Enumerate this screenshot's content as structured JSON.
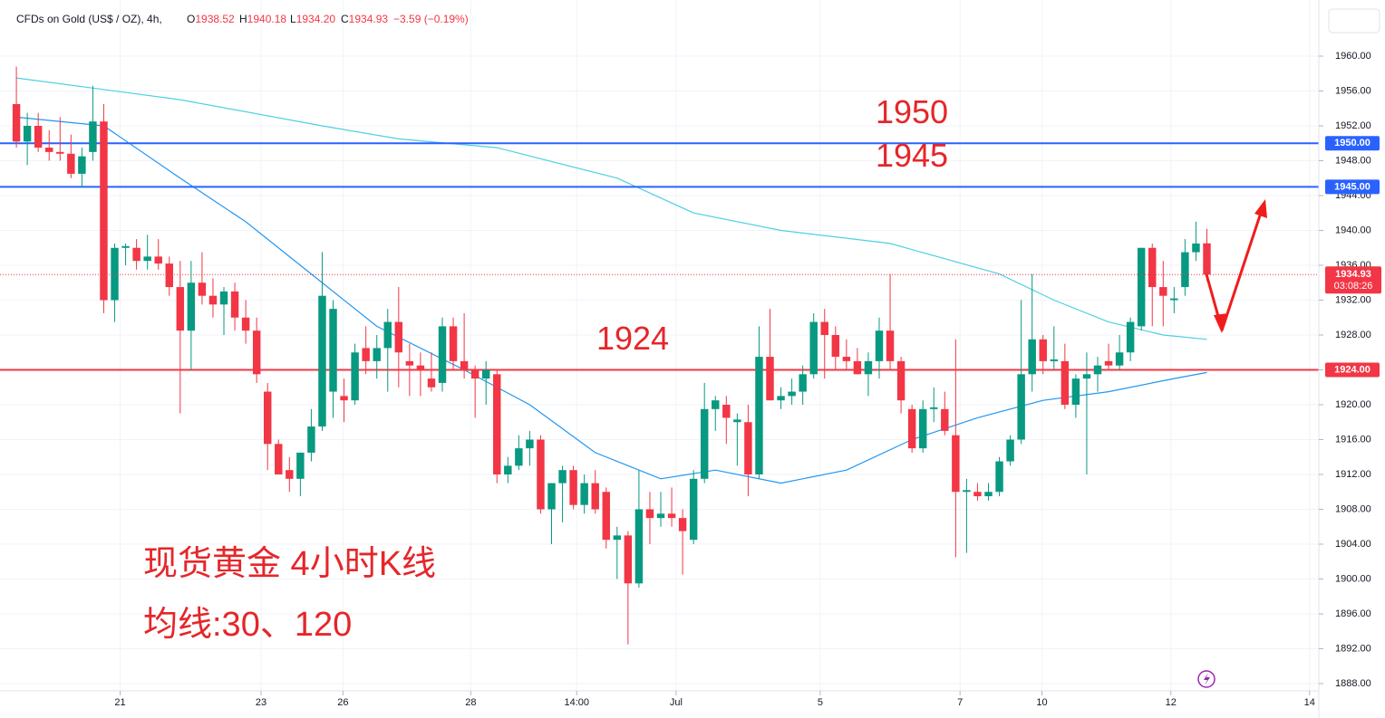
{
  "chart_data": {
    "type": "candlestick",
    "title": "CFDs on Gold (US$ / OZ), 4h,",
    "ohlc_header": [
      {
        "key": "O",
        "text": "1938.52"
      },
      {
        "key": "H",
        "text": "1940.18"
      },
      {
        "key": "L",
        "text": "1934.20"
      },
      {
        "key": "C",
        "text": "1934.93"
      },
      {
        "key": "",
        "text": "−3.59 (−0.19%)"
      }
    ],
    "up_color": "#089981",
    "down_color": "#f23645",
    "open": [
      1954.5,
      1950.2,
      1952,
      1949.5,
      1949,
      1948.8,
      1946.5,
      1949,
      1952.5,
      1932,
      1938,
      1938,
      1936.5,
      1937,
      1936.2,
      1933.5,
      1928.5,
      1934,
      1932.5,
      1931.5,
      1933,
      1930,
      1928.5,
      1921.5,
      1915.5,
      1912.5,
      1911.5,
      1914.5,
      1917.5,
      1921.5,
      1921,
      1920.5,
      1926.5,
      1925,
      1926.5,
      1929.5,
      1925,
      1924.5,
      1923,
      1922.5,
      1929,
      1925,
      1924,
      1923,
      1923.5,
      1912,
      1913,
      1915,
      1916,
      1908,
      1911,
      1912.5,
      1908.5,
      1911,
      1910,
      1904.5,
      1905,
      1899.5,
      1908,
      1907,
      1907.5,
      1907,
      1904.5,
      1911.5,
      1919.5,
      1920,
      1918,
      1918,
      1912,
      1925.5,
      1920.5,
      1921,
      1921.5,
      1923.5,
      1929.5,
      1928,
      1925.5,
      1925,
      1923.5,
      1925,
      1928.5,
      1925,
      1919.5,
      1915,
      1919.5,
      1919.5,
      1916.5,
      1910,
      1910,
      1909.5,
      1910,
      1913.5,
      1916,
      1923.5,
      1927.5,
      1925,
      1925,
      1920,
      1923,
      1923.5,
      1925,
      1924.5,
      1926,
      1929,
      1938,
      1933.5,
      1932,
      1933.5,
      1937.5,
      1938.52
    ],
    "high": [
      1958.8,
      1953.5,
      1953.5,
      1951.5,
      1953,
      1951,
      1949.5,
      1956.6,
      1954.5,
      1938.5,
      1938.5,
      1939,
      1939.5,
      1939,
      1937,
      1936.5,
      1936.5,
      1937.5,
      1934.5,
      1933.5,
      1934,
      1932,
      1930,
      1922.5,
      1916,
      1914,
      1914,
      1919.5,
      1937.5,
      1932,
      1923,
      1927,
      1929,
      1928,
      1931,
      1933.5,
      1927,
      1926,
      1926,
      1930,
      1930,
      1930.5,
      1924.5,
      1925,
      1924,
      1914,
      1916.5,
      1917,
      1916.5,
      1911,
      1913,
      1913,
      1912,
      1912.5,
      1910.5,
      1906,
      1905.5,
      1912.5,
      1910,
      1910,
      1910.5,
      1908,
      1912.5,
      1922.5,
      1921,
      1921,
      1919,
      1920,
      1929,
      1931,
      1922,
      1923,
      1924.5,
      1930.5,
      1931,
      1929,
      1927.5,
      1926.5,
      1926,
      1930,
      1935,
      1925.5,
      1920,
      1920.5,
      1922,
      1921.5,
      1927.5,
      1911.5,
      1911,
      1911,
      1914,
      1916.5,
      1932,
      1935,
      1928,
      1929,
      1927,
      1923.5,
      1926,
      1925.5,
      1927,
      1928,
      1930,
      1938,
      1938.5,
      1936.5,
      1933.5,
      1939,
      1941,
      1940.18
    ],
    "low": [
      1949.5,
      1947.5,
      1949,
      1948,
      1948,
      1946,
      1945,
      1948,
      1930.5,
      1929.5,
      1936,
      1935.5,
      1935.5,
      1935.5,
      1932.5,
      1919,
      1924,
      1931.5,
      1930,
      1928,
      1928.5,
      1927,
      1922.5,
      1912.5,
      1912,
      1910,
      1909.5,
      1913.5,
      1917,
      1918.5,
      1918,
      1920,
      1923.5,
      1923,
      1921.5,
      1922,
      1921,
      1921,
      1921.5,
      1921.5,
      1924,
      1923,
      1918.5,
      1920,
      1911,
      1911,
      1912.5,
      1913,
      1907.5,
      1904,
      1906.5,
      1908,
      1907.5,
      1907.5,
      1903.5,
      1900,
      1892.5,
      1899,
      1904,
      1906,
      1906,
      1900.5,
      1904,
      1911,
      1917,
      1915.5,
      1913,
      1909.5,
      1911.5,
      1920.5,
      1919.5,
      1920,
      1920,
      1923,
      1923,
      1924,
      1924,
      1923.5,
      1921,
      1923,
      1924,
      1919,
      1914.5,
      1914.5,
      1918,
      1916.5,
      1902.5,
      1903,
      1909,
      1909,
      1909.5,
      1913,
      1915.5,
      1921.5,
      1923.5,
      1924,
      1919.5,
      1918.5,
      1912,
      1921.5,
      1924,
      1924,
      1925,
      1928.5,
      1929,
      1929,
      1930.5,
      1932.5,
      1936.5,
      1934.2
    ],
    "close": [
      1950.2,
      1952,
      1949.5,
      1949,
      1948.8,
      1946.5,
      1948.5,
      1952.5,
      1932,
      1938,
      1938.2,
      1936.5,
      1937,
      1936.2,
      1933.5,
      1928.5,
      1934,
      1932.5,
      1931.5,
      1933,
      1930,
      1928.5,
      1923.5,
      1915.5,
      1912,
      1911.5,
      1914.5,
      1917.5,
      1932.5,
      1931,
      1920.5,
      1926,
      1925,
      1926.5,
      1929.5,
      1926,
      1924.5,
      1924,
      1922,
      1929,
      1925,
      1924,
      1923,
      1924,
      1912,
      1913,
      1915,
      1916,
      1908,
      1911,
      1912.5,
      1908.5,
      1911,
      1908,
      1904.5,
      1905,
      1899.5,
      1908,
      1907,
      1907.5,
      1907,
      1905.5,
      1911.5,
      1919.5,
      1920.5,
      1918.5,
      1918.3,
      1912,
      1925.5,
      1920.5,
      1921,
      1921.5,
      1923.5,
      1929.5,
      1928,
      1925.5,
      1925,
      1923.5,
      1925,
      1928.5,
      1925,
      1920.5,
      1915,
      1919.5,
      1919.7,
      1917,
      1910,
      1910.2,
      1909.5,
      1910,
      1913.5,
      1916,
      1923.5,
      1927.5,
      1925,
      1925.2,
      1920,
      1923,
      1923.5,
      1924.5,
      1924.5,
      1926,
      1929.5,
      1938,
      1933.5,
      1932.5,
      1932.2,
      1937.5,
      1938.5,
      1934.93
    ],
    "ma_lines": [
      {
        "color": "#4dd0e1",
        "x": [
          0,
          15,
          28,
          35,
          44,
          55,
          62,
          70,
          80,
          90,
          95,
          100,
          105,
          109
        ],
        "values": [
          1957.5,
          1955,
          1952,
          1950.5,
          1949.5,
          1946,
          1942,
          1940,
          1938.5,
          1935,
          1932,
          1929.5,
          1928,
          1927.5
        ]
      },
      {
        "color": "#2196f3",
        "x": [
          0,
          8,
          15,
          21,
          27,
          33,
          41,
          47,
          53,
          59,
          64,
          70,
          76,
          82,
          88,
          94,
          100,
          106,
          109
        ],
        "values": [
          1953,
          1952,
          1946,
          1941,
          1935,
          1929,
          1924,
          1920,
          1914.5,
          1911.5,
          1912.5,
          1911,
          1912.5,
          1916,
          1918.5,
          1920.5,
          1921.5,
          1923,
          1923.7
        ]
      }
    ],
    "levels": [
      {
        "value": 1950,
        "label": "1950.00",
        "color": "#2962ff"
      },
      {
        "value": 1945,
        "label": "1945.00",
        "color": "#2962ff"
      },
      {
        "value": 1924,
        "label": "1924.00",
        "color": "#f23645"
      }
    ],
    "last_price": {
      "value": 1934.93,
      "countdown": "03:08:26",
      "color": "#f23645"
    },
    "annotations": [
      "现货黄金 4小时K线",
      "均线:30、120"
    ],
    "xlim": [
      -1.5,
      119.25
    ],
    "xticks": [
      {
        "value": 9.5,
        "label": "21"
      },
      {
        "value": 22.4,
        "label": "23"
      },
      {
        "value": 29.9,
        "label": "26"
      },
      {
        "value": 41.6,
        "label": "28"
      },
      {
        "value": 51.3,
        "label": "14:00"
      },
      {
        "value": 60.4,
        "label": "Jul"
      },
      {
        "value": 73.6,
        "label": "5"
      },
      {
        "value": 86.4,
        "label": "7"
      },
      {
        "value": 93.9,
        "label": "10"
      },
      {
        "value": 105.7,
        "label": "12"
      },
      {
        "value": 118.4,
        "label": "14"
      }
    ],
    "ylim": [
      1887.17,
      1966.44
    ],
    "yticks": [
      {
        "value": 1888,
        "label": "1888.00"
      },
      {
        "value": 1892,
        "label": "1892.00"
      },
      {
        "value": 1896,
        "label": "1896.00"
      },
      {
        "value": 1900,
        "label": "1900.00"
      },
      {
        "value": 1904,
        "label": "1904.00"
      },
      {
        "value": 1908,
        "label": "1908.00"
      },
      {
        "value": 1912,
        "label": "1912.00"
      },
      {
        "value": 1916,
        "label": "1916.00"
      },
      {
        "value": 1920,
        "label": "1920.00"
      },
      {
        "value": 1924,
        "label": "1924.00"
      },
      {
        "value": 1928,
        "label": "1928.00"
      },
      {
        "value": 1932,
        "label": "1932.00"
      },
      {
        "value": 1936,
        "label": "1936.00"
      },
      {
        "value": 1940,
        "label": "1940.00"
      },
      {
        "value": 1944,
        "label": "1944.00"
      },
      {
        "value": 1948,
        "label": "1948.00"
      },
      {
        "value": 1952,
        "label": "1952.00"
      },
      {
        "value": 1956,
        "label": "1956.00"
      },
      {
        "value": 1960,
        "label": "1960.00"
      }
    ],
    "grid": true
  }
}
